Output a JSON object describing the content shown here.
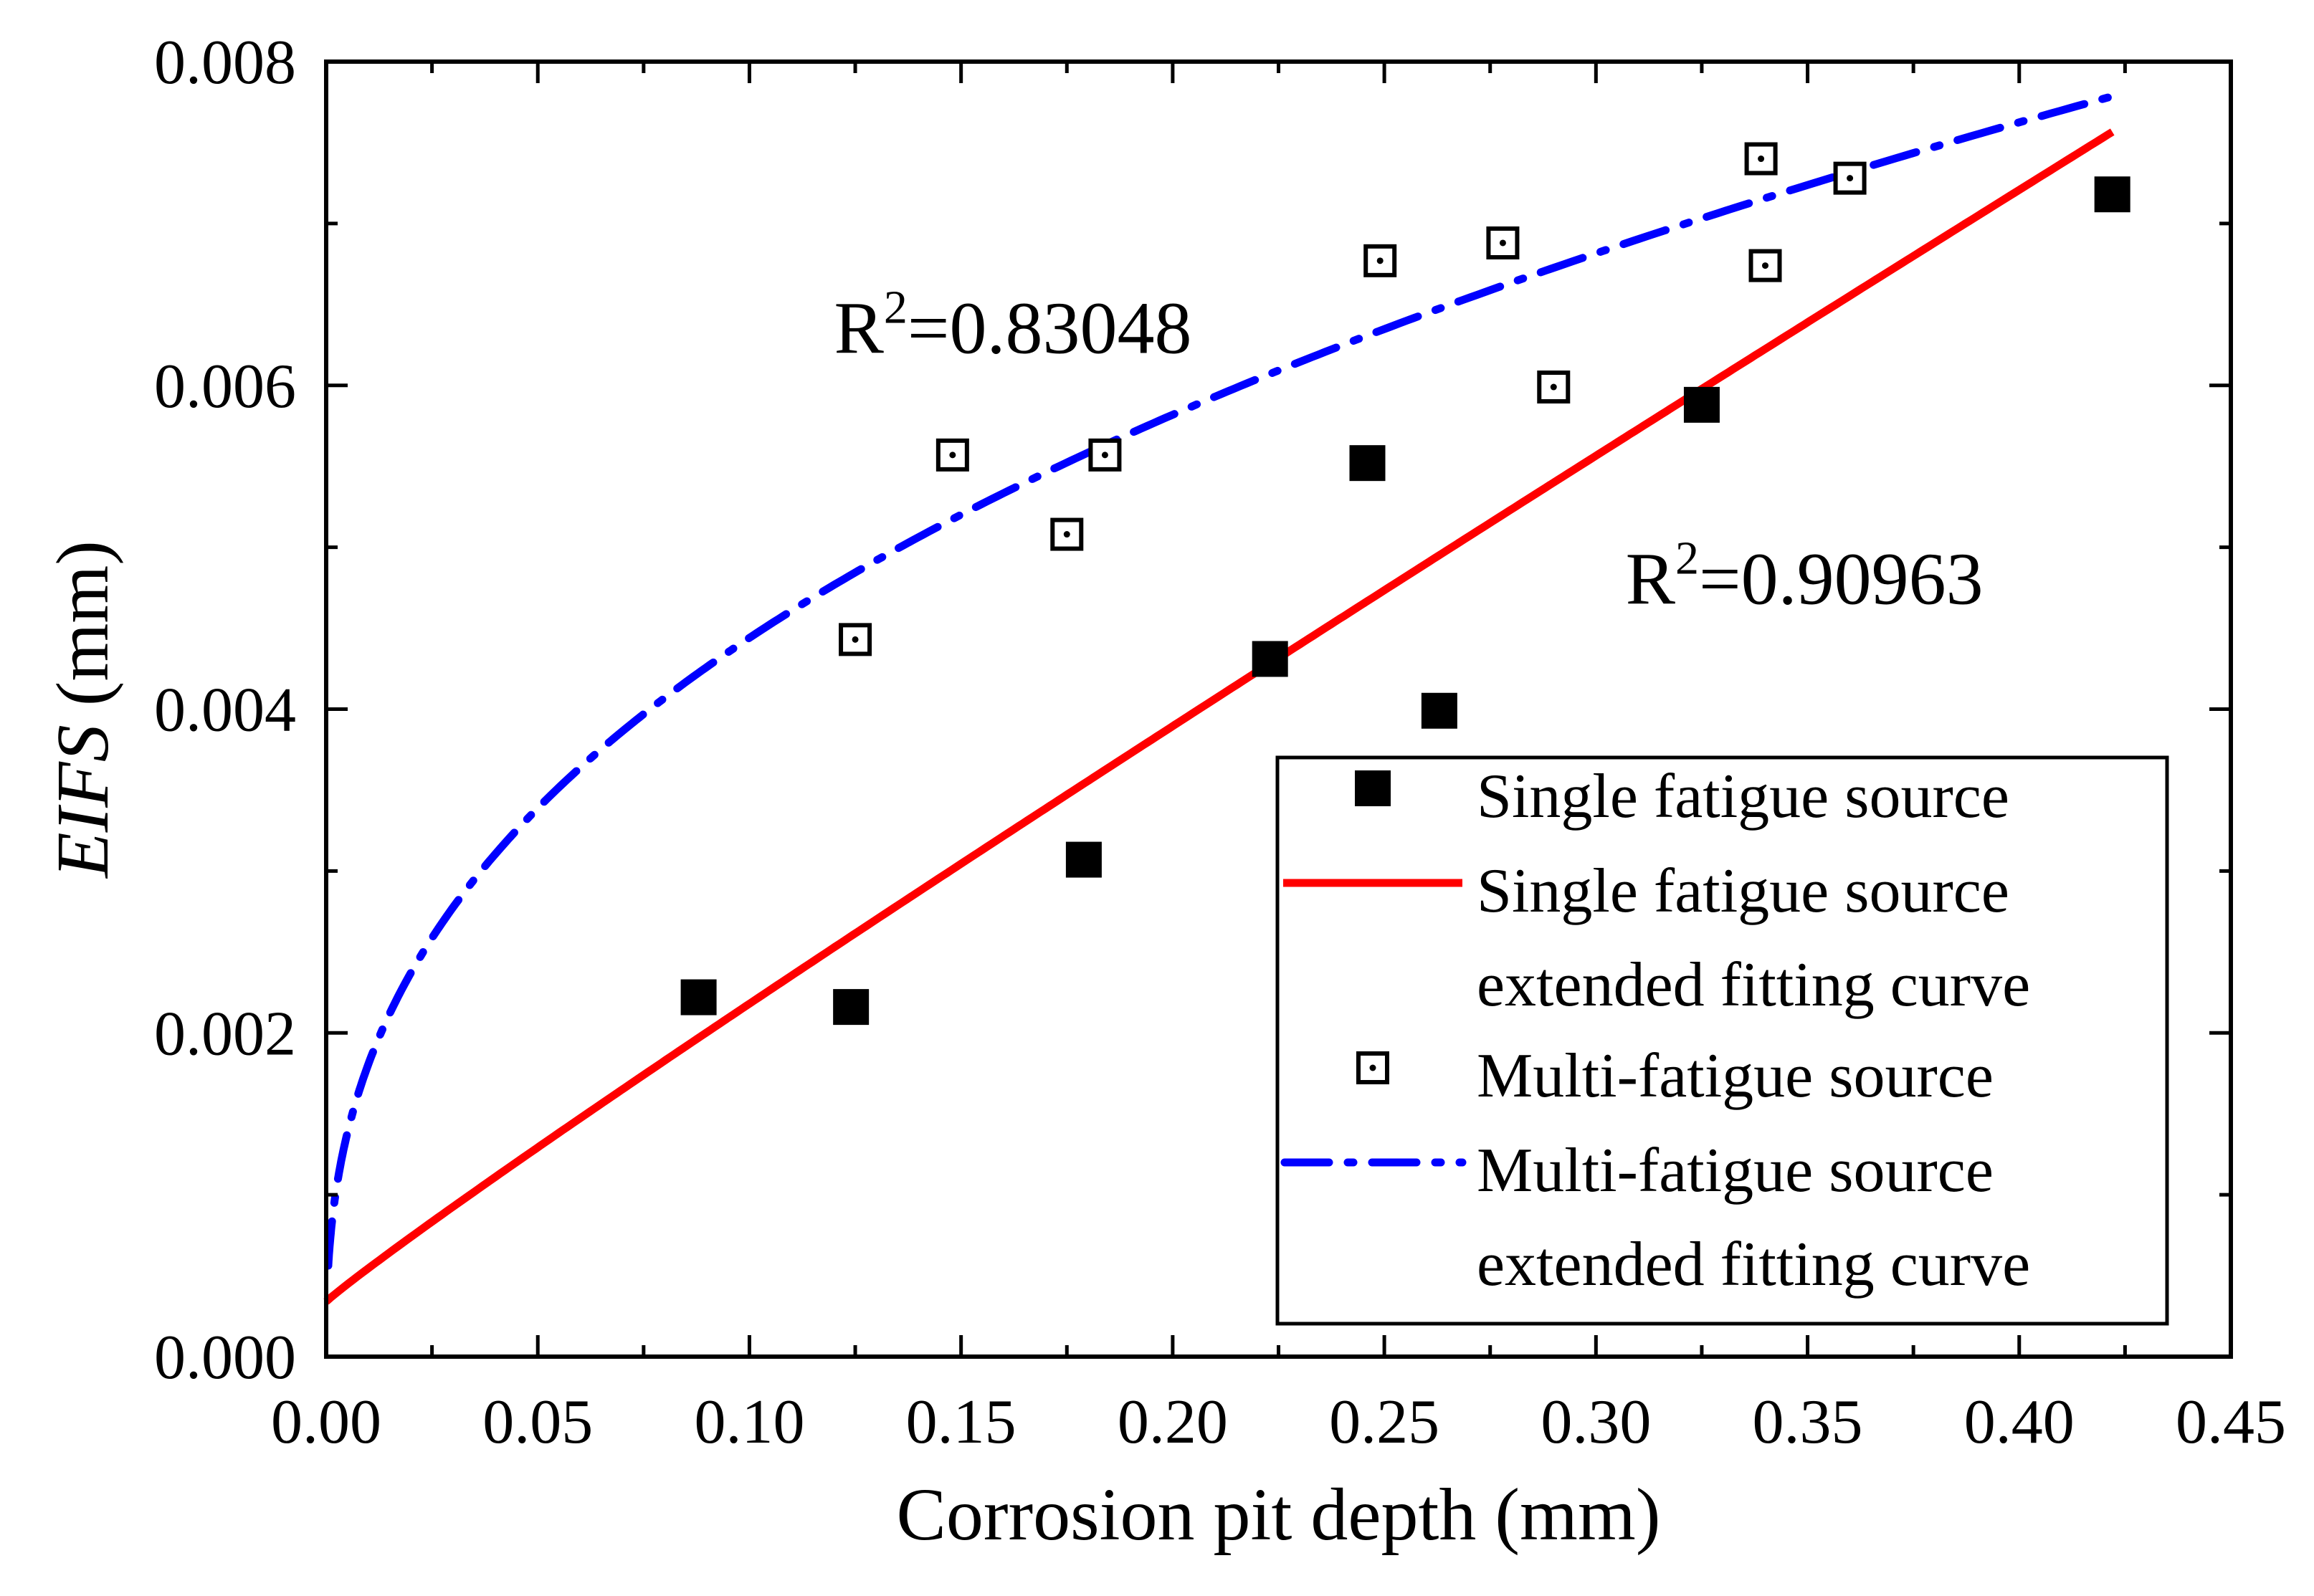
{
  "chart_data": {
    "type": "scatter",
    "xlabel": "Corrosion pit depth (mm)",
    "ylabel_italic": "EIFS",
    "ylabel_unit": " (mm)",
    "xlim": [
      0,
      0.45
    ],
    "ylim": [
      0,
      0.008
    ],
    "x_ticks": [
      0,
      0.05,
      0.1,
      0.15,
      0.2,
      0.25,
      0.3,
      0.35,
      0.4,
      0.45
    ],
    "x_tick_labels": [
      "0.00",
      "0.05",
      "0.10",
      "0.15",
      "0.20",
      "0.25",
      "0.30",
      "0.35",
      "0.40",
      "0.45"
    ],
    "y_ticks": [
      0,
      0.002,
      0.004,
      0.006,
      0.008
    ],
    "y_tick_labels": [
      "0.000",
      "0.002",
      "0.004",
      "0.006",
      "0.008"
    ],
    "series": [
      {
        "name": "Single fatigue source",
        "kind": "scatter",
        "marker": "filled-square",
        "color": "#000000",
        "points": [
          [
            0.088,
            0.00222
          ],
          [
            0.124,
            0.00216
          ],
          [
            0.179,
            0.00307
          ],
          [
            0.223,
            0.00431
          ],
          [
            0.246,
            0.00552
          ],
          [
            0.263,
            0.00399
          ],
          [
            0.325,
            0.00588
          ],
          [
            0.422,
            0.00718
          ]
        ]
      },
      {
        "name": "Single fatigue source extended fitting curve",
        "kind": "line",
        "style": "solid",
        "color": "#ff0000",
        "x_range": [
          0,
          0.422
        ],
        "model": "a + b*x^c",
        "params": {
          "a": 0.00034,
          "b": 0.0164,
          "c": 0.95
        }
      },
      {
        "name": "Multi-fatigue source",
        "kind": "scatter",
        "marker": "hollow-dotted-square",
        "color": "#000000",
        "points": [
          [
            0.125,
            0.00443
          ],
          [
            0.148,
            0.00557
          ],
          [
            0.175,
            0.00508
          ],
          [
            0.184,
            0.00557
          ],
          [
            0.249,
            0.00677
          ],
          [
            0.278,
            0.00688
          ],
          [
            0.29,
            0.00599
          ],
          [
            0.339,
            0.0074
          ],
          [
            0.34,
            0.00674
          ],
          [
            0.36,
            0.00728
          ]
        ]
      },
      {
        "name": "Multi-fatigue source extended fitting curve",
        "kind": "line",
        "style": "dash-dot",
        "color": "#0000ff",
        "x_range": [
          0.0005,
          0.422
        ],
        "model": "b*x^c",
        "params": {
          "b": 0.0109,
          "c": 0.39
        }
      }
    ],
    "annotations": [
      {
        "base": "R",
        "sup": "2",
        "text": "=0.83048",
        "at": [
          0.12,
          0.0062
        ]
      },
      {
        "base": "R",
        "sup": "2",
        "text": "=0.90963",
        "at": [
          0.307,
          0.00465
        ]
      }
    ],
    "legend": {
      "position": "bottom-right",
      "entries": [
        {
          "label_lines": [
            "Single fatigue source"
          ],
          "symbol": "filled-square"
        },
        {
          "label_lines": [
            "Single fatigue source",
            " extended fitting curve"
          ],
          "symbol": "red-line"
        },
        {
          "label_lines": [
            "Multi-fatigue source"
          ],
          "symbol": "hollow-dotted-square"
        },
        {
          "label_lines": [
            "Multi-fatigue source",
            " extended fitting curve"
          ],
          "symbol": "blue-dash-dot"
        }
      ]
    }
  }
}
